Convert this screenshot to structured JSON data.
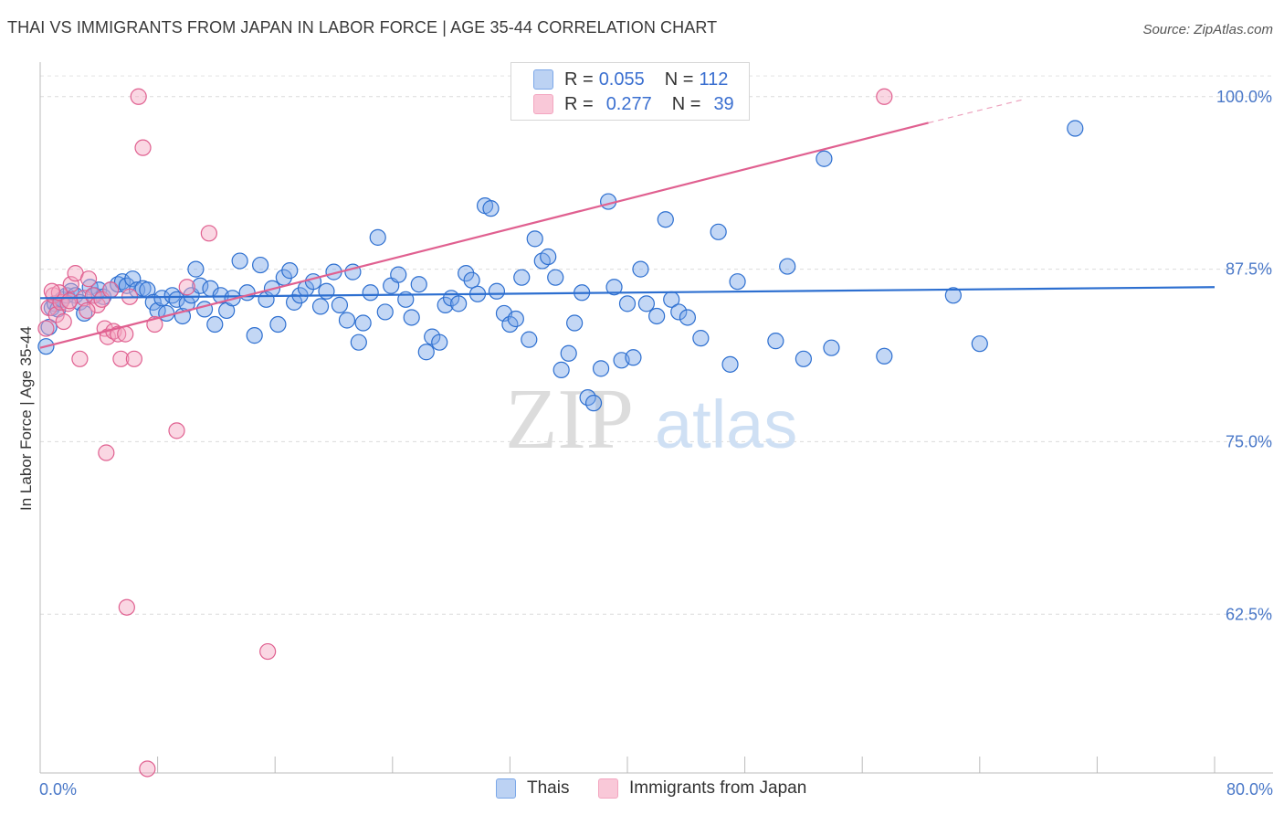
{
  "title": "THAI VS IMMIGRANTS FROM JAPAN IN LABOR FORCE | AGE 35-44 CORRELATION CHART",
  "source": "Source: ZipAtlas.com",
  "watermark": {
    "zip": "ZIP",
    "atlas": "atlas"
  },
  "colors": {
    "thai": "#7ba7e8",
    "thai_line": "#2d6fd0",
    "japan": "#f3a6c0",
    "japan_line": "#e06090",
    "tick_text": "#4a78c8"
  },
  "legend": {
    "rows": [
      {
        "r_label": "R =",
        "r_value": "0.055",
        "n_label": "N =",
        "n_value": "112"
      },
      {
        "r_label": "R =",
        "r_value": "0.277",
        "n_label": "N =",
        "n_value": "39"
      }
    ]
  },
  "bottom_legend": [
    "Thais",
    "Immigrants from Japan"
  ],
  "chart_data": {
    "type": "scatter",
    "xlabel": "",
    "ylabel": "In Labor Force | Age 35-44",
    "xlim": [
      0,
      80
    ],
    "ylim": [
      51,
      102.5
    ],
    "x_tick_labels": [
      "0.0%",
      "80.0%"
    ],
    "y_ticks": [
      62.5,
      75.0,
      87.5,
      100.0
    ],
    "y_tick_labels": [
      "62.5%",
      "75.0%",
      "87.5%",
      "100.0%"
    ],
    "grid": true,
    "series": [
      {
        "name": "Thais",
        "r": 0.055,
        "n": 112,
        "trend": {
          "x": [
            0,
            80
          ],
          "y": [
            85.4,
            86.2
          ]
        },
        "points": [
          [
            0.4,
            81.9
          ],
          [
            0.6,
            83.3
          ],
          [
            0.8,
            84.7
          ],
          [
            1.0,
            85.0
          ],
          [
            1.2,
            84.6
          ],
          [
            1.5,
            85.3
          ],
          [
            1.8,
            85.6
          ],
          [
            2.1,
            85.9
          ],
          [
            2.4,
            85.6
          ],
          [
            2.7,
            85.1
          ],
          [
            3.0,
            84.3
          ],
          [
            3.4,
            86.2
          ],
          [
            3.7,
            85.6
          ],
          [
            4.0,
            86.0
          ],
          [
            4.3,
            85.5
          ],
          [
            4.8,
            86.0
          ],
          [
            5.3,
            86.4
          ],
          [
            5.6,
            86.6
          ],
          [
            5.9,
            86.3
          ],
          [
            6.3,
            86.8
          ],
          [
            6.6,
            86.0
          ],
          [
            7.0,
            86.1
          ],
          [
            7.3,
            86.0
          ],
          [
            7.7,
            85.1
          ],
          [
            8.0,
            84.5
          ],
          [
            8.3,
            85.4
          ],
          [
            8.6,
            84.3
          ],
          [
            9.0,
            85.6
          ],
          [
            9.3,
            85.3
          ],
          [
            9.7,
            84.1
          ],
          [
            10.0,
            85.0
          ],
          [
            10.3,
            85.6
          ],
          [
            10.6,
            87.5
          ],
          [
            10.9,
            86.3
          ],
          [
            11.2,
            84.6
          ],
          [
            11.6,
            86.1
          ],
          [
            11.9,
            83.5
          ],
          [
            12.3,
            85.6
          ],
          [
            12.7,
            84.5
          ],
          [
            13.1,
            85.4
          ],
          [
            13.6,
            88.1
          ],
          [
            14.1,
            85.8
          ],
          [
            14.6,
            82.7
          ],
          [
            15.0,
            87.8
          ],
          [
            15.4,
            85.3
          ],
          [
            15.8,
            86.1
          ],
          [
            16.2,
            83.5
          ],
          [
            16.6,
            86.9
          ],
          [
            17.0,
            87.4
          ],
          [
            17.3,
            85.1
          ],
          [
            17.7,
            85.6
          ],
          [
            18.1,
            86.1
          ],
          [
            18.6,
            86.6
          ],
          [
            19.1,
            84.8
          ],
          [
            19.5,
            85.9
          ],
          [
            20.0,
            87.3
          ],
          [
            20.4,
            84.9
          ],
          [
            20.9,
            83.8
          ],
          [
            21.3,
            87.3
          ],
          [
            21.7,
            82.2
          ],
          [
            22.0,
            83.6
          ],
          [
            22.5,
            85.8
          ],
          [
            23.0,
            89.8
          ],
          [
            23.5,
            84.4
          ],
          [
            23.9,
            86.3
          ],
          [
            24.4,
            87.1
          ],
          [
            24.9,
            85.3
          ],
          [
            25.3,
            84.0
          ],
          [
            25.8,
            86.4
          ],
          [
            26.3,
            81.5
          ],
          [
            26.7,
            82.6
          ],
          [
            27.2,
            82.2
          ],
          [
            27.6,
            84.9
          ],
          [
            28.0,
            85.4
          ],
          [
            28.5,
            85.0
          ],
          [
            29.0,
            87.2
          ],
          [
            29.4,
            86.7
          ],
          [
            29.8,
            85.7
          ],
          [
            30.3,
            92.1
          ],
          [
            30.7,
            91.9
          ],
          [
            31.1,
            85.9
          ],
          [
            31.6,
            84.3
          ],
          [
            32.0,
            83.5
          ],
          [
            32.4,
            83.9
          ],
          [
            32.8,
            86.9
          ],
          [
            33.3,
            82.4
          ],
          [
            33.7,
            89.7
          ],
          [
            34.2,
            88.1
          ],
          [
            34.6,
            88.4
          ],
          [
            35.1,
            86.9
          ],
          [
            35.5,
            80.2
          ],
          [
            36.0,
            81.4
          ],
          [
            36.4,
            83.6
          ],
          [
            36.9,
            85.8
          ],
          [
            37.3,
            78.2
          ],
          [
            37.7,
            77.8
          ],
          [
            38.2,
            80.3
          ],
          [
            38.7,
            92.4
          ],
          [
            39.1,
            86.2
          ],
          [
            39.6,
            80.9
          ],
          [
            40.0,
            85.0
          ],
          [
            40.4,
            81.1
          ],
          [
            40.9,
            87.5
          ],
          [
            41.3,
            85.0
          ],
          [
            42.0,
            84.1
          ],
          [
            42.6,
            91.1
          ],
          [
            43.0,
            85.3
          ],
          [
            43.5,
            84.4
          ],
          [
            44.1,
            84.0
          ],
          [
            45.0,
            82.5
          ],
          [
            46.2,
            90.2
          ],
          [
            47.0,
            80.6
          ],
          [
            47.5,
            86.6
          ],
          [
            50.1,
            82.3
          ],
          [
            50.9,
            87.7
          ],
          [
            52.0,
            81.0
          ],
          [
            53.4,
            95.5
          ],
          [
            53.9,
            81.8
          ],
          [
            57.5,
            81.2
          ],
          [
            62.2,
            85.6
          ],
          [
            64.0,
            82.1
          ],
          [
            70.5,
            97.7
          ]
        ]
      },
      {
        "name": "Immigrants from Japan",
        "r": 0.277,
        "n": 39,
        "trend": {
          "x": [
            0,
            60.5
          ],
          "y": [
            81.8,
            98.1
          ]
        },
        "trend_dashed": {
          "x": [
            60.5,
            67.0
          ],
          "y": [
            98.1,
            99.8
          ]
        },
        "points": [
          [
            0.4,
            83.2
          ],
          [
            0.6,
            84.7
          ],
          [
            0.9,
            85.6
          ],
          [
            1.1,
            84.2
          ],
          [
            1.4,
            85.1
          ],
          [
            1.6,
            83.7
          ],
          [
            1.9,
            85.0
          ],
          [
            2.1,
            86.4
          ],
          [
            2.4,
            87.2
          ],
          [
            2.7,
            81.0
          ],
          [
            3.0,
            85.4
          ],
          [
            3.3,
            86.8
          ],
          [
            3.6,
            85.6
          ],
          [
            3.9,
            84.9
          ],
          [
            4.2,
            85.3
          ],
          [
            4.4,
            83.2
          ],
          [
            4.6,
            82.6
          ],
          [
            4.8,
            86.0
          ],
          [
            5.0,
            83.0
          ],
          [
            5.3,
            82.8
          ],
          [
            5.5,
            81.0
          ],
          [
            5.8,
            82.8
          ],
          [
            6.1,
            85.5
          ],
          [
            6.4,
            81.0
          ],
          [
            6.7,
            100.0
          ],
          [
            7.0,
            96.3
          ],
          [
            7.8,
            83.5
          ],
          [
            9.3,
            75.8
          ],
          [
            10.0,
            86.2
          ],
          [
            11.5,
            90.1
          ],
          [
            4.5,
            74.2
          ],
          [
            5.9,
            63.0
          ],
          [
            15.5,
            59.8
          ],
          [
            7.3,
            51.3
          ],
          [
            57.5,
            100.0
          ],
          [
            1.3,
            85.8
          ],
          [
            2.0,
            85.2
          ],
          [
            3.2,
            84.5
          ],
          [
            0.8,
            85.9
          ]
        ]
      }
    ]
  }
}
